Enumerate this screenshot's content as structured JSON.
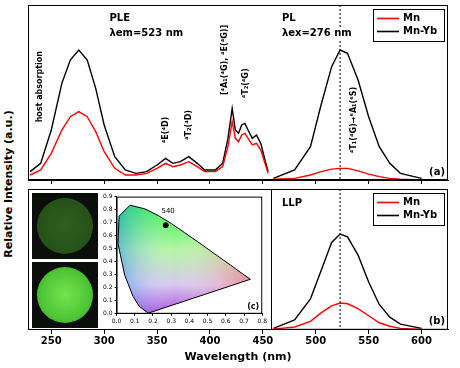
{
  "chart_data": [
    {
      "type": "line",
      "panel_label": "(a)",
      "ylabel": "Relative Intensity (a.u.)",
      "xlim": [
        228,
        625
      ],
      "xticks": [
        250,
        300,
        350,
        400,
        450,
        500,
        550,
        600
      ],
      "ylim": [
        0,
        1.05
      ],
      "tick_labels": false,
      "legend": "upper right",
      "vline": 523,
      "x": [
        230,
        240,
        250,
        260,
        268,
        276,
        284,
        292,
        300,
        310,
        320,
        330,
        340,
        350,
        358,
        365,
        372,
        380,
        388,
        395,
        405,
        412,
        417,
        421,
        424,
        427,
        430,
        433,
        436,
        440,
        444,
        448,
        452,
        455,
        457,
        460,
        480,
        495,
        505,
        515,
        523,
        530,
        540,
        550,
        560,
        570,
        580,
        600
      ],
      "series": [
        {
          "name": "Mn",
          "color": "#ff0000",
          "values": [
            0.03,
            0.06,
            0.16,
            0.3,
            0.38,
            0.41,
            0.38,
            0.29,
            0.17,
            0.07,
            0.03,
            0.03,
            0.04,
            0.07,
            0.1,
            0.08,
            0.09,
            0.11,
            0.08,
            0.05,
            0.05,
            0.08,
            0.2,
            0.35,
            0.25,
            0.23,
            0.27,
            0.28,
            0.25,
            0.21,
            0.22,
            0.18,
            0.1,
            0.04,
            null,
            0.005,
            0.01,
            0.03,
            0.05,
            0.065,
            0.07,
            0.07,
            0.055,
            0.035,
            0.02,
            0.01,
            0.005,
            0.0
          ]
        },
        {
          "name": "Mn-Yb",
          "color": "#000000",
          "values": [
            0.05,
            0.1,
            0.3,
            0.58,
            0.72,
            0.78,
            0.72,
            0.55,
            0.33,
            0.14,
            0.06,
            0.04,
            0.05,
            0.09,
            0.13,
            0.1,
            0.11,
            0.14,
            0.1,
            0.06,
            0.06,
            0.1,
            0.25,
            0.43,
            0.3,
            0.28,
            0.33,
            0.34,
            0.3,
            0.25,
            0.27,
            0.22,
            0.12,
            0.05,
            null,
            0.01,
            0.06,
            0.2,
            0.45,
            0.68,
            0.78,
            0.76,
            0.6,
            0.38,
            0.2,
            0.1,
            0.04,
            0.01
          ]
        }
      ],
      "annotations": [
        {
          "text": "PLE",
          "x": 305,
          "y": 0.97
        },
        {
          "text": "λem=523 nm",
          "x": 305,
          "y": 0.88
        },
        {
          "text": "PL",
          "x": 468,
          "y": 0.97
        },
        {
          "text": "λex=276 nm",
          "x": 468,
          "y": 0.88
        },
        {
          "text": "host absorption",
          "x": 239,
          "y": 0.56
        },
        {
          "text": "⁴E(⁴D)",
          "x": 358,
          "y": 0.3
        },
        {
          "text": "⁴T₂(⁴D)",
          "x": 380,
          "y": 0.33
        },
        {
          "text": "[⁴A₁(⁴G), ⁴E(⁴G)]",
          "x": 414,
          "y": 0.72
        },
        {
          "text": "⁴T₂(⁴G)",
          "x": 434,
          "y": 0.58
        },
        {
          "text": "⁴T₁(⁴G)→⁶A₁(⁶S)",
          "x": 536,
          "y": 0.36
        }
      ]
    },
    {
      "type": "line",
      "panel_label": "(b)",
      "xlabel": "Wavelength (nm)",
      "xlim": [
        228,
        625
      ],
      "xticks": [
        250,
        300,
        350,
        400,
        450,
        500,
        550,
        600
      ],
      "ylim": [
        0,
        1
      ],
      "tick_labels": "x",
      "legend": "upper right",
      "vline": 523,
      "x": [
        460,
        480,
        495,
        505,
        515,
        523,
        530,
        540,
        550,
        560,
        570,
        580,
        600
      ],
      "series": [
        {
          "name": "Mn",
          "color": "#ff0000",
          "values": [
            0.005,
            0.02,
            0.06,
            0.12,
            0.17,
            0.19,
            0.185,
            0.15,
            0.1,
            0.05,
            0.025,
            0.01,
            0.003
          ]
        },
        {
          "name": "Mn-Yb",
          "color": "#000000",
          "values": [
            0.01,
            0.07,
            0.22,
            0.42,
            0.62,
            0.68,
            0.66,
            0.53,
            0.34,
            0.18,
            0.09,
            0.04,
            0.01
          ]
        }
      ],
      "annotations": [
        {
          "text": "LLP",
          "x": 468,
          "y": 0.9
        }
      ]
    },
    {
      "type": "scatter",
      "panel_label": "(c)",
      "xlim": [
        0,
        0.8
      ],
      "ylim": [
        0,
        0.9
      ],
      "xticks": [
        {
          "value": 0,
          "label": "0.0"
        },
        0.1,
        0.2,
        0.3,
        0.4,
        0.5,
        0.6,
        0.7,
        0.8
      ],
      "yticks": [
        {
          "value": 0,
          "label": "0.0"
        },
        0.1,
        0.2,
        0.3,
        0.4,
        0.5,
        0.6,
        0.7,
        0.8,
        0.9
      ],
      "series": [
        {
          "color": "#000000",
          "line_style": "solid",
          "x": [
            0.174,
            0.124,
            0.091,
            0.045,
            0.008,
            0.014,
            0.074,
            0.155,
            0.23,
            0.302,
            0.373,
            0.444,
            0.512,
            0.627,
            0.691,
            0.735,
            0.174
          ],
          "values": [
            0.005,
            0.058,
            0.133,
            0.295,
            0.538,
            0.75,
            0.834,
            0.806,
            0.754,
            0.692,
            0.624,
            0.555,
            0.487,
            0.373,
            0.308,
            0.265,
            0.005
          ]
        },
        {
          "color": "#000000",
          "marker": "circle",
          "x": [
            0.27
          ],
          "values": [
            0.68
          ]
        }
      ],
      "annotations": [
        {
          "text": "540",
          "x": 0.23,
          "y": 0.754
        }
      ]
    }
  ]
}
